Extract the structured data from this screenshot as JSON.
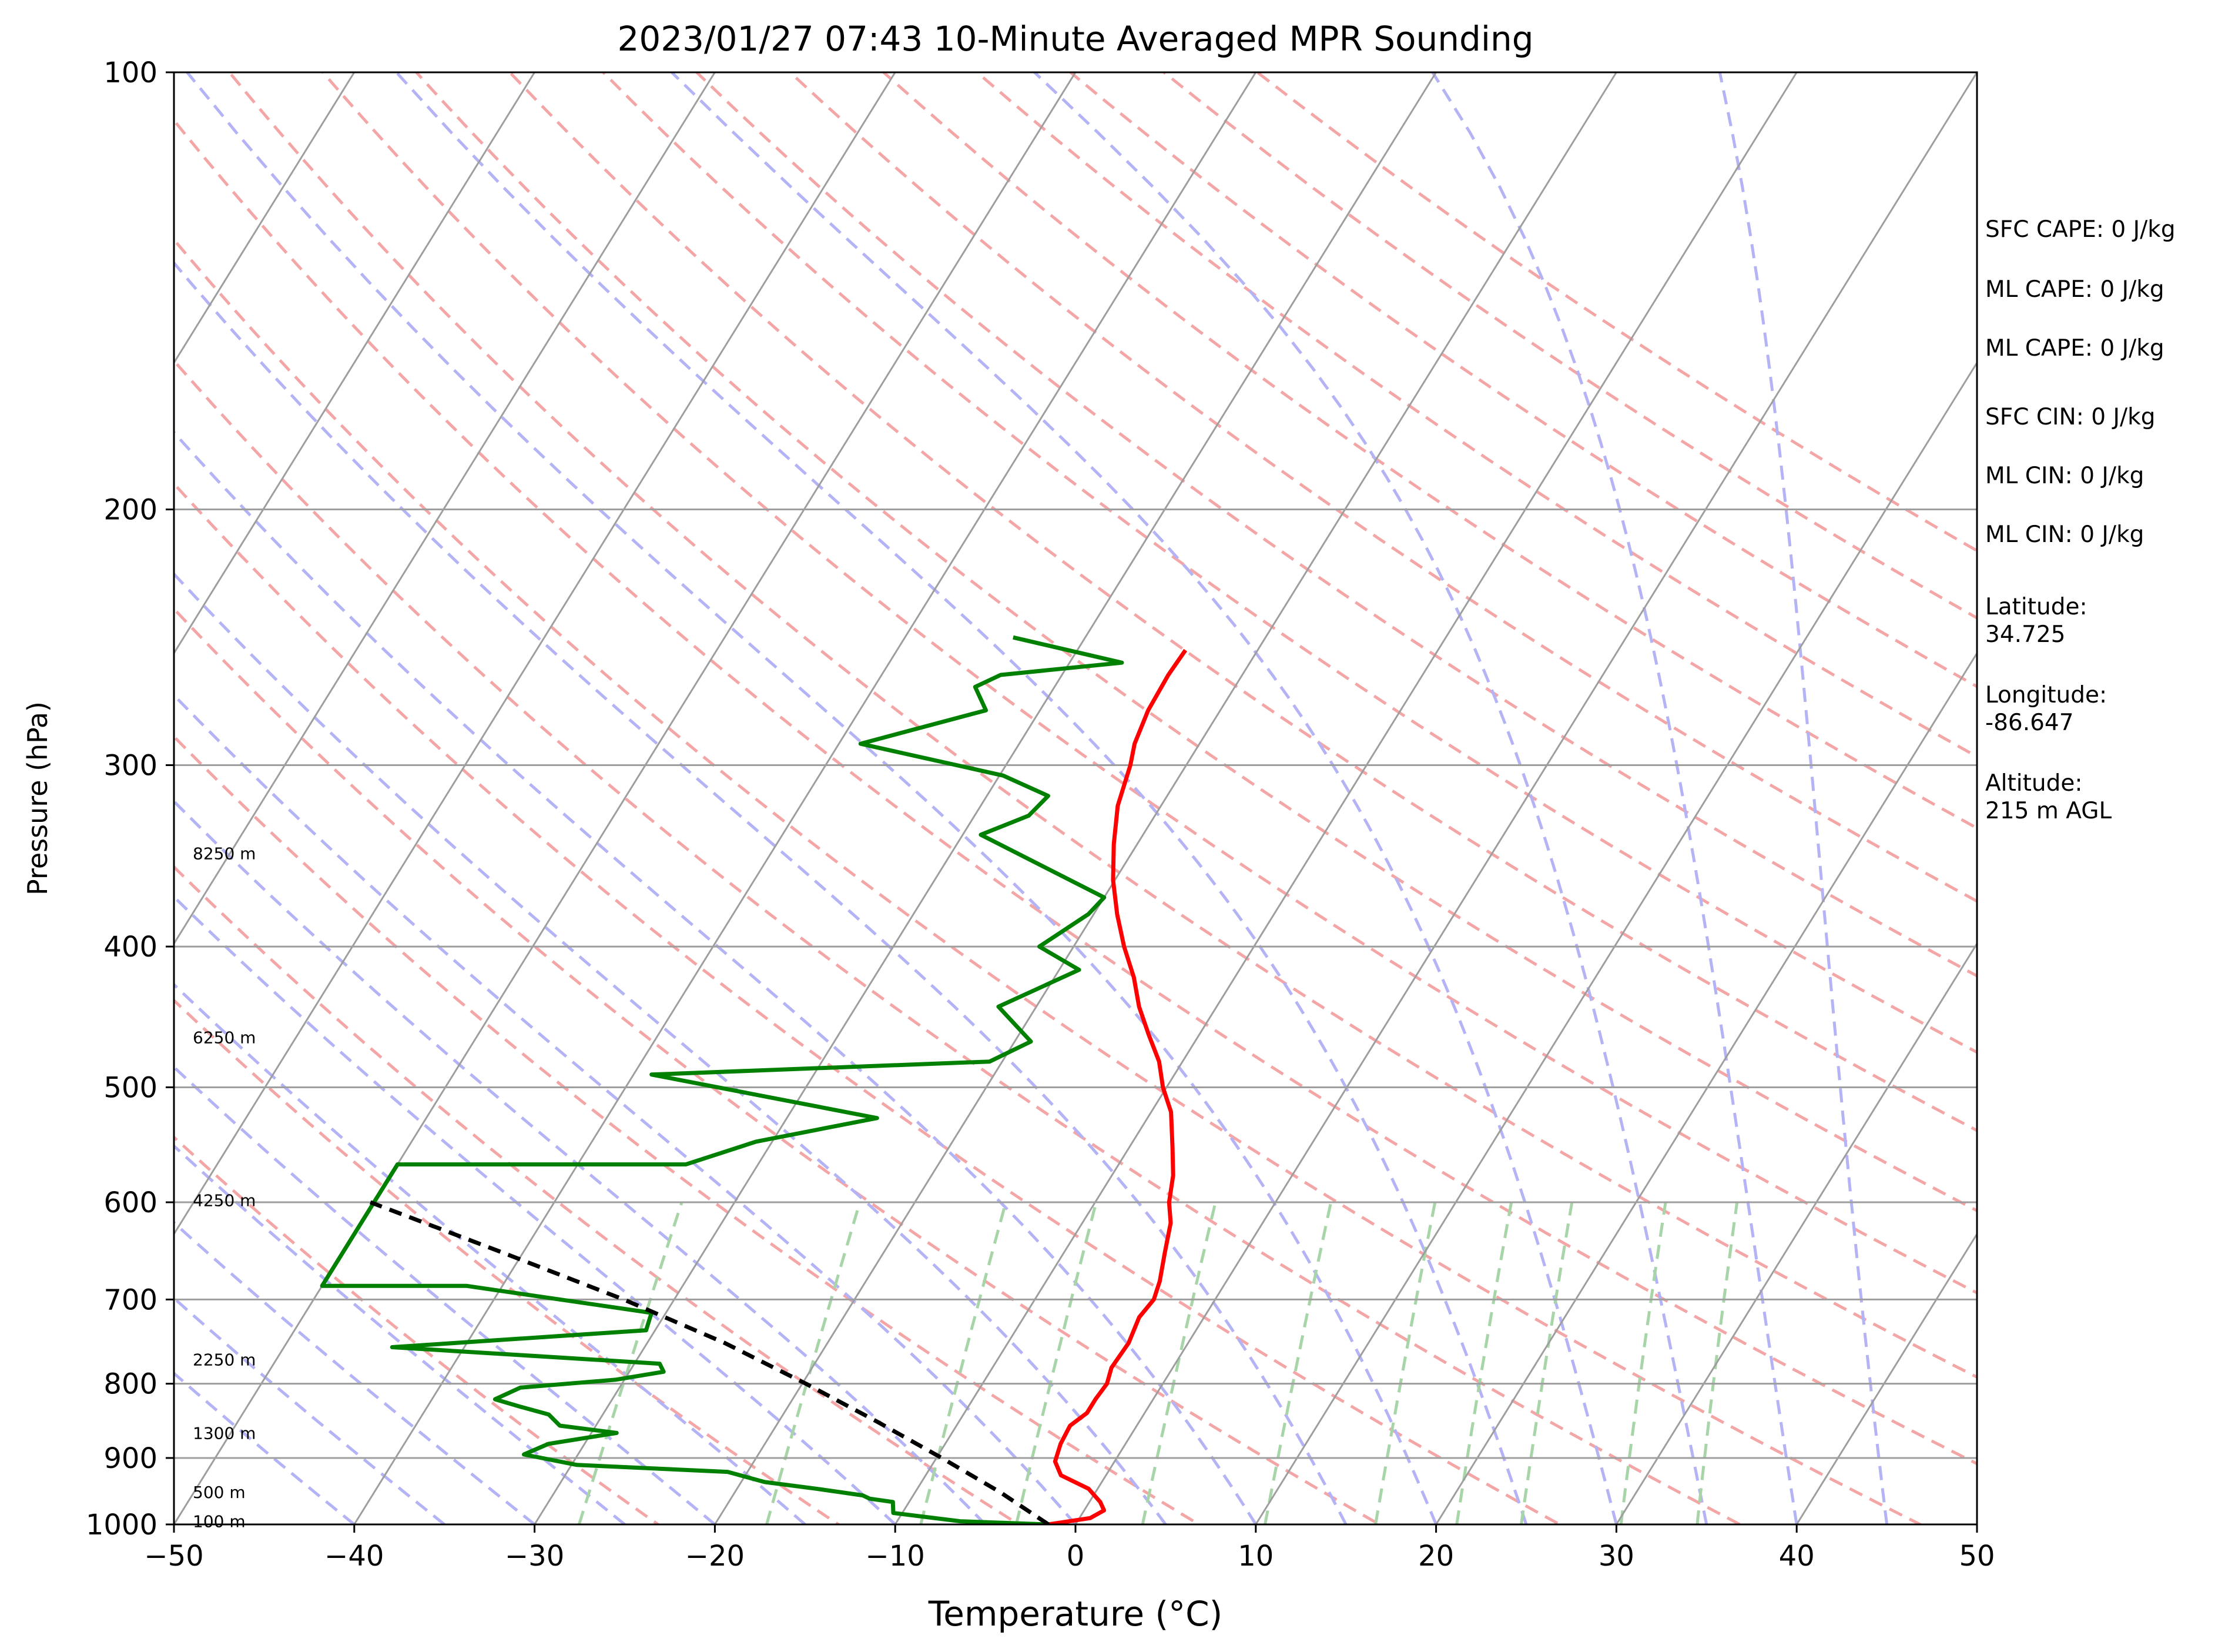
{
  "chart_data": {
    "type": "line",
    "title": "2023/01/27 07:43 10-Minute Averaged MPR Sounding",
    "xlabel": "Temperature (°C)",
    "ylabel": "Pressure (hPa)",
    "xlim": [
      -50,
      50
    ],
    "ylim": [
      1000,
      100
    ],
    "y_scale": "log",
    "x_ticks": [
      "−50",
      "−40",
      "−30",
      "−20",
      "−10",
      "0",
      "10",
      "20",
      "30",
      "40",
      "50"
    ],
    "y_ticks": [
      "100",
      "200",
      "300",
      "400",
      "500",
      "600",
      "700",
      "800",
      "900",
      "1000"
    ],
    "grid": "horizontal isobars at labelled pressures, skewed isotherms",
    "series": [
      {
        "color": "#ff0000",
        "x": [
          -1.5,
          0.6,
          1.1,
          0.6,
          -0.5,
          -2.5,
          -3.3,
          -3.6,
          -3.7,
          -3.2,
          -3.2,
          -3.1,
          -3.4,
          -3.3,
          -3.6,
          -3.4,
          -3.7,
          -4.4,
          -5.1,
          -5.9,
          -6.6,
          -7.6,
          -8.9,
          -10.2,
          -11.3,
          -12.8,
          -14.3,
          -15.6,
          -17.2,
          -18.7,
          -20.1,
          -21.3,
          -22.4,
          -23.1,
          -23.6,
          -24.0,
          -24.1,
          -24.0
        ],
        "y": [
          1000,
          990,
          978,
          965,
          945,
          925,
          905,
          880,
          855,
          838,
          820,
          800,
          780,
          750,
          720,
          700,
          680,
          650,
          620,
          600,
          575,
          550,
          520,
          500,
          480,
          460,
          440,
          420,
          400,
          380,
          360,
          340,
          320,
          300,
          290,
          275,
          260,
          250
        ]
      },
      {
        "color": "#008000",
        "x": [
          -1.5,
          -6.5,
          -10.5,
          -10.9,
          -12.3,
          -12.8,
          -15.6,
          -18.7,
          -21.1,
          -29.7,
          -33.0,
          -32.0,
          -28.6,
          -32.0,
          -33.0,
          -34.8,
          -36.5,
          -35.5,
          -30.5,
          -28.1,
          -28.6,
          -44.0,
          -30.5,
          -30.8,
          -42.0,
          -50.0,
          -50.0,
          -34.0,
          -30.9,
          -25.0,
          -39.0,
          -20.7,
          -19.1,
          -22.1,
          -18.9,
          -21.9,
          -20.3,
          -20.0,
          -29.0,
          -27.0,
          -26.6,
          -29.8,
          -38.8,
          -33.0,
          -34.4,
          -33.4,
          -27.1,
          -34.0
        ],
        "y": [
          1000,
          995,
          982,
          965,
          960,
          955,
          945,
          935,
          920,
          910,
          895,
          880,
          865,
          855,
          840,
          830,
          820,
          805,
          795,
          785,
          775,
          755,
          735,
          715,
          685,
          685,
          565,
          565,
          545,
          525,
          490,
          480,
          465,
          440,
          415,
          400,
          380,
          370,
          335,
          325,
          315,
          305,
          290,
          275,
          265,
          260,
          255,
          245
        ]
      },
      {
        "color": "#000000",
        "dashed": true,
        "x": [
          -1.5,
          -5.3,
          -9.7,
          -14.5,
          -19.8,
          -25.7,
          -32.8,
          -41.1,
          -50.2
        ],
        "y": [
          1000,
          950,
          900,
          850,
          800,
          750,
          700,
          650,
          600
        ]
      }
    ],
    "height_labels": [
      {
        "text": "100 m",
        "p": 995
      },
      {
        "text": "500 m",
        "p": 950
      },
      {
        "text": "1300 m",
        "p": 865
      },
      {
        "text": "2250 m",
        "p": 770
      },
      {
        "text": "4250 m",
        "p": 598
      },
      {
        "text": "6250 m",
        "p": 462
      },
      {
        "text": "8250 m",
        "p": 345
      }
    ],
    "info_lines": [
      "SFC CAPE: 0 J/kg",
      "ML CAPE: 0 J/kg",
      "ML CAPE: 0 J/kg",
      "SFC CIN: 0 J/kg",
      "ML CIN: 0 J/kg",
      "ML CIN: 0 J/kg",
      "Latitude:",
      "34.725",
      "Longitude:",
      "-86.647",
      "Altitude:",
      "215 m AGL"
    ],
    "colors": {
      "temperature": "#ff0000",
      "dewpoint": "#008000",
      "parcel": "#000000",
      "dry_adiabats": "#f4a6a6",
      "moist_adiabats": "#b3b3f5",
      "mixing_ratio": "#a8d5a8",
      "isotherms": "#9e9e9e"
    }
  }
}
